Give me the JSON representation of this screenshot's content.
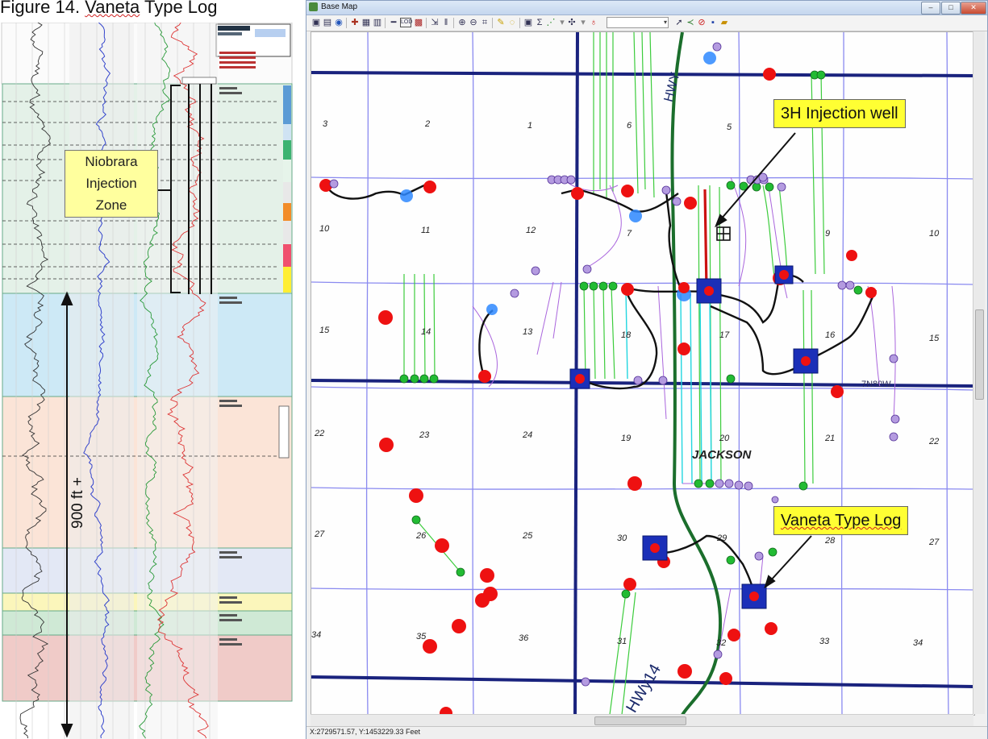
{
  "figure": {
    "title_prefix": "Figure 14. ",
    "title_word": "Vaneta",
    "title_suffix": " Type Log",
    "callout_lines": [
      "Niobrara",
      "Injection",
      "Zone"
    ],
    "depth_label": "900 ft +"
  },
  "window": {
    "title": "Base Map",
    "minimize": "–",
    "maximize": "□",
    "close": "✕"
  },
  "toolbar": {
    "tools": [
      "copy-icon",
      "paste-icon",
      "globe-icon",
      "pick-icon",
      "grid-icon",
      "table-icon",
      "ruler-icon",
      "lod-icon",
      "calc-icon",
      "pointer-icon",
      "line-icon",
      "zoom-in-icon",
      "zoom-out-icon",
      "zoom-extent-icon",
      "pencil-icon",
      "lasso-icon",
      "image-icon",
      "sum-icon",
      "chart-icon",
      "cross-icon",
      "well-icon",
      "arrow-icon",
      "connect-icon",
      "delete-icon",
      "save-icon",
      "open-icon"
    ],
    "layer_value": ""
  },
  "map": {
    "callouts": {
      "injection": "3H Injection well",
      "typelog": "Vaneta Type Log"
    },
    "town": "JACKSON",
    "road_label": "7N80W",
    "sections": [
      "3",
      "2",
      "1",
      "6",
      "5",
      "10",
      "11",
      "12",
      "7",
      "9",
      "10",
      "15",
      "14",
      "13",
      "18",
      "17",
      "16",
      "15",
      "22",
      "23",
      "24",
      "19",
      "20",
      "21",
      "22",
      "27",
      "26",
      "25",
      "30",
      "29",
      "28",
      "27",
      "34",
      "35",
      "36",
      "31",
      "32",
      "33",
      "34"
    ],
    "status_coords": "X:2729571.57, Y:1453229.33 Feet"
  },
  "colors": {
    "section_line": "#8888ee",
    "highway": "#1a237e",
    "green_well": "#22aa22",
    "red_well": "#ee1111",
    "blue_well": "#2e88ff",
    "lateral_green": "#33cc33",
    "lateral_purple": "#aa66dd",
    "lateral_cyan": "#22dddd"
  }
}
